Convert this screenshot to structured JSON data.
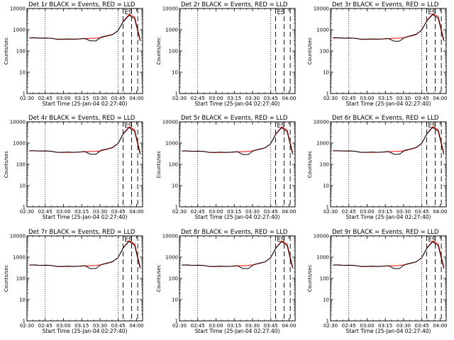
{
  "chart_data": [
    {
      "type": "line",
      "title": "Det 1r BLACK = Events, RED = LLD",
      "xlabel": "Start Time (25-Jan-04 02:27:40)",
      "ylabel": "Counts/sec",
      "yscale": "log",
      "ylim": [
        1,
        10000
      ],
      "yticks": [
        "1",
        "10",
        "100",
        "1000",
        "10000"
      ],
      "xticks": [
        "02:30",
        "02:45",
        "03:00",
        "03:15",
        "03:30",
        "03:45",
        "04:00"
      ],
      "marker_label": "ES",
      "has_data": true,
      "dotted_x": [
        "02:45",
        "03:45"
      ],
      "dashed_x": [
        "03:49",
        "03:56",
        "04:01"
      ],
      "events": [
        420,
        420,
        400,
        410,
        395,
        360,
        360,
        370,
        360,
        370,
        390,
        300,
        300,
        450,
        520,
        600,
        900,
        2500,
        4800,
        3400,
        300
      ],
      "lld": [
        410,
        410,
        400,
        405,
        395,
        355,
        350,
        360,
        355,
        365,
        380,
        390,
        400,
        430,
        500,
        580,
        900,
        2600,
        5200,
        4000,
        350
      ],
      "series": [
        {
          "name": "BLACK = Events",
          "color": "#000000"
        },
        {
          "name": "RED = LLD",
          "color": "#ff0000"
        }
      ]
    },
    {
      "type": "line",
      "title": "Det 2r BLACK = Events, RED = LLD",
      "xlabel": "Start Time (25-Jan-04 02:27:40)",
      "ylabel": "Counts/sec",
      "yscale": "log",
      "ylim": [
        1,
        10000
      ],
      "yticks": [
        "1",
        "10",
        "100",
        "1000",
        "10000"
      ],
      "xticks": [
        "02:30",
        "02:45",
        "03:00",
        "03:15",
        "03:30",
        "03:45",
        "04:00"
      ],
      "marker_label": "ES",
      "has_data": false,
      "dotted_x": [
        "02:45",
        "03:45"
      ],
      "dashed_x": [
        "03:49",
        "03:56",
        "04:01"
      ],
      "events": [],
      "lld": [],
      "series": [
        {
          "name": "BLACK = Events",
          "color": "#000000"
        },
        {
          "name": "RED = LLD",
          "color": "#ff0000"
        }
      ]
    },
    {
      "type": "line",
      "title": "Det 3r BLACK = Events, RED = LLD",
      "xlabel": "Start Time (25-Jan-04 02:27:40)",
      "ylabel": "Counts/sec",
      "yscale": "log",
      "ylim": [
        1,
        10000
      ],
      "yticks": [
        "1",
        "10",
        "100",
        "1000",
        "10000"
      ],
      "xticks": [
        "02:30",
        "02:45",
        "03:00",
        "03:15",
        "03:30",
        "03:45",
        "04:00"
      ],
      "marker_label": "ES",
      "has_data": true,
      "dotted_x": [
        "02:45",
        "03:45"
      ],
      "dashed_x": [
        "03:49",
        "03:56",
        "04:01"
      ],
      "events": [
        420,
        420,
        400,
        410,
        395,
        360,
        360,
        370,
        360,
        370,
        390,
        290,
        290,
        440,
        520,
        610,
        950,
        2700,
        5200,
        3500,
        300
      ],
      "lld": [
        410,
        410,
        400,
        405,
        395,
        355,
        350,
        360,
        355,
        365,
        380,
        390,
        400,
        430,
        500,
        590,
        950,
        2800,
        5600,
        4200,
        350
      ],
      "series": [
        {
          "name": "BLACK = Events",
          "color": "#000000"
        },
        {
          "name": "RED = LLD",
          "color": "#ff0000"
        }
      ]
    },
    {
      "type": "line",
      "title": "Det 4r BLACK = Events, RED = LLD",
      "xlabel": "Start Time (25-Jan-04 02:27:40)",
      "ylabel": "Counts/sec",
      "yscale": "log",
      "ylim": [
        1,
        10000
      ],
      "yticks": [
        "1",
        "10",
        "100",
        "1000",
        "10000"
      ],
      "xticks": [
        "02:30",
        "02:45",
        "03:00",
        "03:15",
        "03:30",
        "03:45",
        "04:00"
      ],
      "marker_label": "ES",
      "has_data": true,
      "dotted_x": [
        "02:45",
        "03:45"
      ],
      "dashed_x": [
        "03:49",
        "03:56",
        "04:01"
      ],
      "events": [
        440,
        440,
        420,
        430,
        410,
        370,
        370,
        380,
        370,
        380,
        400,
        300,
        300,
        460,
        530,
        620,
        950,
        2800,
        5400,
        3600,
        300
      ],
      "lld": [
        430,
        430,
        420,
        425,
        410,
        365,
        360,
        370,
        365,
        375,
        390,
        400,
        410,
        440,
        510,
        600,
        950,
        2900,
        5800,
        4300,
        350
      ],
      "series": [
        {
          "name": "BLACK = Events",
          "color": "#000000"
        },
        {
          "name": "RED = LLD",
          "color": "#ff0000"
        }
      ]
    },
    {
      "type": "line",
      "title": "Det 5r BLACK = Events, RED = LLD",
      "xlabel": "Start Time (25-Jan-04 02:27:40)",
      "ylabel": "Counts/sec",
      "yscale": "log",
      "ylim": [
        1,
        10000
      ],
      "yticks": [
        "1",
        "10",
        "100",
        "1000",
        "10000"
      ],
      "xticks": [
        "02:30",
        "02:45",
        "03:00",
        "03:15",
        "03:30",
        "03:45",
        "04:00"
      ],
      "marker_label": "ES",
      "has_data": true,
      "dotted_x": [
        "02:45",
        "03:45"
      ],
      "dashed_x": [
        "03:49",
        "03:56",
        "04:01"
      ],
      "events": [
        430,
        430,
        410,
        420,
        400,
        365,
        365,
        375,
        365,
        375,
        395,
        290,
        290,
        450,
        520,
        600,
        920,
        2700,
        5300,
        3500,
        300
      ],
      "lld": [
        420,
        420,
        410,
        415,
        400,
        360,
        355,
        365,
        360,
        370,
        385,
        395,
        405,
        435,
        505,
        590,
        920,
        2800,
        5700,
        4200,
        350
      ],
      "series": [
        {
          "name": "BLACK = Events",
          "color": "#000000"
        },
        {
          "name": "RED = LLD",
          "color": "#ff0000"
        }
      ]
    },
    {
      "type": "line",
      "title": "Det 6r BLACK = Events, RED = LLD",
      "xlabel": "Start Time (25-Jan-04 02:27:40)",
      "ylabel": "Counts/sec",
      "yscale": "log",
      "ylim": [
        1,
        10000
      ],
      "yticks": [
        "1",
        "10",
        "100",
        "1000",
        "10000"
      ],
      "xticks": [
        "02:30",
        "02:45",
        "03:00",
        "03:15",
        "03:30",
        "03:45",
        "04:00"
      ],
      "marker_label": "ES",
      "has_data": true,
      "dotted_x": [
        "02:45",
        "03:45"
      ],
      "dashed_x": [
        "03:49",
        "03:56",
        "04:01"
      ],
      "events": [
        440,
        440,
        420,
        430,
        410,
        370,
        370,
        380,
        370,
        380,
        400,
        300,
        300,
        460,
        530,
        620,
        950,
        2800,
        5500,
        3600,
        300
      ],
      "lld": [
        430,
        430,
        420,
        425,
        410,
        365,
        360,
        370,
        365,
        375,
        390,
        400,
        410,
        440,
        510,
        600,
        950,
        2900,
        5900,
        4300,
        350
      ],
      "series": [
        {
          "name": "BLACK = Events",
          "color": "#000000"
        },
        {
          "name": "RED = LLD",
          "color": "#ff0000"
        }
      ]
    },
    {
      "type": "line",
      "title": "Det 7r BLACK = Events, RED = LLD",
      "xlabel": "Start Time (25-Jan-04 02:27:40)",
      "ylabel": "Counts/sec",
      "yscale": "log",
      "ylim": [
        1,
        10000
      ],
      "yticks": [
        "1",
        "10",
        "100",
        "1000",
        "10000"
      ],
      "xticks": [
        "02:30",
        "02:45",
        "03:00",
        "03:15",
        "03:30",
        "03:45",
        "04:00"
      ],
      "marker_label": "ES",
      "has_data": true,
      "dotted_x": [
        "02:45",
        "03:45"
      ],
      "dashed_x": [
        "03:49",
        "03:56",
        "04:01"
      ],
      "events": [
        430,
        430,
        410,
        420,
        400,
        365,
        365,
        375,
        365,
        375,
        395,
        290,
        290,
        450,
        520,
        610,
        940,
        2800,
        5600,
        3600,
        300
      ],
      "lld": [
        420,
        420,
        410,
        415,
        400,
        360,
        355,
        365,
        360,
        370,
        385,
        395,
        405,
        435,
        505,
        595,
        940,
        2900,
        6000,
        4300,
        350
      ],
      "series": [
        {
          "name": "BLACK = Events",
          "color": "#000000"
        },
        {
          "name": "RED = LLD",
          "color": "#ff0000"
        }
      ]
    },
    {
      "type": "line",
      "title": "Det 8r BLACK = Events, RED = LLD",
      "xlabel": "Start Time (25-Jan-04 02:27:40)",
      "ylabel": "Counts/sec",
      "yscale": "log",
      "ylim": [
        1,
        10000
      ],
      "yticks": [
        "1",
        "10",
        "100",
        "1000",
        "10000"
      ],
      "xticks": [
        "02:30",
        "02:45",
        "03:00",
        "03:15",
        "03:30",
        "03:45",
        "04:00"
      ],
      "marker_label": "ES",
      "has_data": true,
      "dotted_x": [
        "02:45",
        "03:45"
      ],
      "dashed_x": [
        "03:49",
        "03:56",
        "04:01"
      ],
      "events": [
        430,
        430,
        410,
        420,
        400,
        365,
        365,
        375,
        365,
        375,
        395,
        290,
        290,
        450,
        520,
        600,
        920,
        2700,
        5400,
        3500,
        300
      ],
      "lld": [
        420,
        420,
        410,
        415,
        400,
        360,
        355,
        365,
        360,
        370,
        385,
        395,
        405,
        435,
        505,
        590,
        920,
        2800,
        5800,
        4200,
        350
      ],
      "series": [
        {
          "name": "BLACK = Events",
          "color": "#000000"
        },
        {
          "name": "RED = LLD",
          "color": "#ff0000"
        }
      ]
    },
    {
      "type": "line",
      "title": "Det 9r BLACK = Events, RED = LLD",
      "xlabel": "Start Time (25-Jan-04 02:27:40)",
      "ylabel": "Counts/sec",
      "yscale": "log",
      "ylim": [
        1,
        10000
      ],
      "yticks": [
        "1",
        "10",
        "100",
        "1000",
        "10000"
      ],
      "xticks": [
        "02:30",
        "02:45",
        "03:00",
        "03:15",
        "03:30",
        "03:45",
        "04:00"
      ],
      "marker_label": "ES",
      "has_data": true,
      "dotted_x": [
        "02:45",
        "03:45"
      ],
      "dashed_x": [
        "03:49",
        "03:56",
        "04:01"
      ],
      "events": [
        430,
        430,
        410,
        420,
        400,
        365,
        365,
        375,
        365,
        375,
        395,
        290,
        290,
        450,
        520,
        600,
        920,
        2700,
        5300,
        3500,
        300
      ],
      "lld": [
        420,
        420,
        410,
        415,
        400,
        360,
        355,
        365,
        360,
        370,
        385,
        395,
        405,
        435,
        505,
        590,
        920,
        2800,
        5700,
        4200,
        350
      ],
      "series": [
        {
          "name": "BLACK = Events",
          "color": "#000000"
        },
        {
          "name": "RED = LLD",
          "color": "#ff0000"
        }
      ]
    }
  ]
}
